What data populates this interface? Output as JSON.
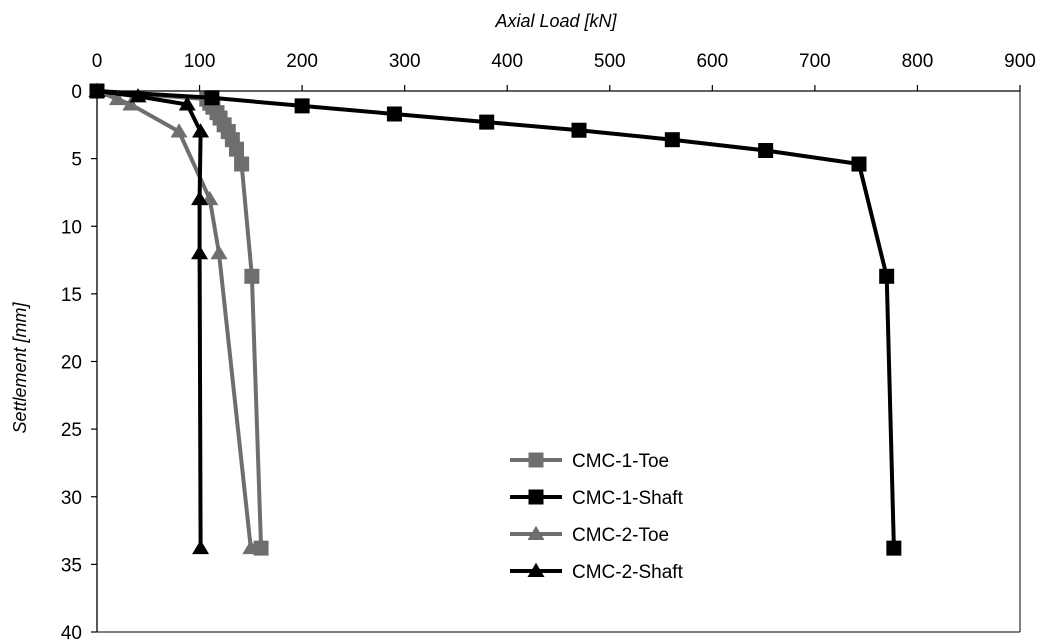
{
  "chart_data": {
    "type": "line",
    "xlabel": "Axial Load [kN]",
    "ylabel": "Settlement [mm]",
    "xlim": [
      0,
      900
    ],
    "ylim": [
      0,
      40
    ],
    "y_inverted": true,
    "x_axis_position": "top",
    "x_ticks": [
      "0",
      "100",
      "200",
      "300",
      "400",
      "500",
      "600",
      "700",
      "800",
      "900"
    ],
    "y_ticks": [
      "0",
      "5",
      "10",
      "15",
      "20",
      "25",
      "30",
      "35",
      "40"
    ],
    "grid": false,
    "legend_position": "bottom-center",
    "series": [
      {
        "name": "CMC-1-Toe",
        "color": "#6e6e6e",
        "marker": "square",
        "points": [
          [
            0,
            0
          ],
          [
            107,
            0.6
          ],
          [
            110,
            0.9
          ],
          [
            113,
            1.2
          ],
          [
            117,
            1.6
          ],
          [
            120,
            2.0
          ],
          [
            124,
            2.5
          ],
          [
            128,
            3.0
          ],
          [
            132,
            3.6
          ],
          [
            136,
            4.3
          ],
          [
            141,
            5.4
          ],
          [
            151,
            13.7
          ],
          [
            160,
            33.8
          ]
        ]
      },
      {
        "name": "CMC-1-Shaft",
        "color": "#000000",
        "marker": "square",
        "points": [
          [
            0,
            0
          ],
          [
            112,
            0.5
          ],
          [
            200,
            1.1
          ],
          [
            290,
            1.7
          ],
          [
            380,
            2.3
          ],
          [
            470,
            2.9
          ],
          [
            561,
            3.6
          ],
          [
            652,
            4.4
          ],
          [
            743,
            5.4
          ],
          [
            770,
            13.7
          ],
          [
            777,
            33.8
          ]
        ]
      },
      {
        "name": "CMC-2-Toe",
        "color": "#6e6e6e",
        "marker": "triangle",
        "points": [
          [
            0,
            0
          ],
          [
            20,
            0.6
          ],
          [
            33,
            1.0
          ],
          [
            80,
            3.0
          ],
          [
            110,
            8.0
          ],
          [
            119,
            12.0
          ],
          [
            150,
            33.8
          ]
        ]
      },
      {
        "name": "CMC-2-Shaft",
        "color": "#000000",
        "marker": "triangle",
        "points": [
          [
            0,
            0
          ],
          [
            40,
            0.4
          ],
          [
            88,
            1.0
          ],
          [
            101,
            3.0
          ],
          [
            100,
            8.0
          ],
          [
            100,
            12.0
          ],
          [
            101,
            33.8
          ]
        ]
      }
    ]
  }
}
